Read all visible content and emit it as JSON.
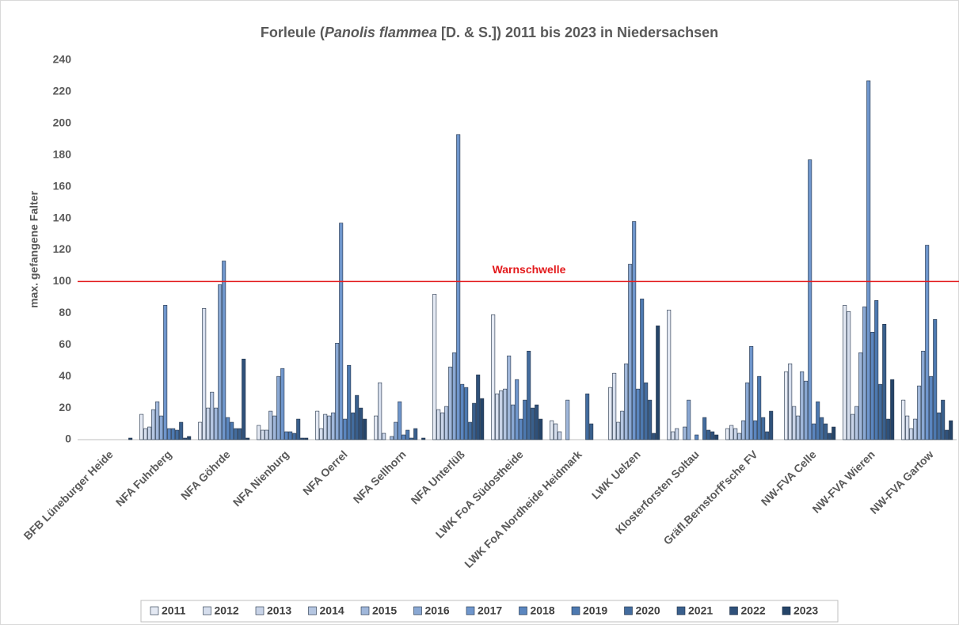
{
  "chart_data": {
    "type": "bar",
    "title_parts": [
      "Forleule (",
      "Panolis flammea",
      " [D. & S.]) 2011 bis 2023 in Niedersachsen"
    ],
    "y_label": "max. gefangene Falter",
    "threshold": {
      "value": 100,
      "label": "Warnschwelle",
      "color": "#e31a1c"
    },
    "categories": [
      "BFB Lüneburger Heide",
      "NFA Fuhrberg",
      "NFA Göhrde",
      "NFA Nienburg",
      "NFA Oerrel",
      "NFA Sellhorn",
      "NFA Unterlüß",
      "LWK FoA Südostheide",
      "LWK FoA Nordheide Heidmark",
      "LWK Uelzen",
      "Klosterforsten Soltau",
      "Gräfl.Bernstorff'sche FV",
      "NW-FVA Celle",
      "NW-FVA Wieren",
      "NW-FVA Gartow"
    ],
    "ylim": [
      0,
      240
    ],
    "yticks": [
      0,
      20,
      40,
      60,
      80,
      100,
      120,
      140,
      160,
      180,
      200,
      220,
      240
    ],
    "series": [
      {
        "name": "2011",
        "color": "#e4e9f3",
        "values": [
          null,
          16,
          11,
          9,
          18,
          15,
          92,
          79,
          12,
          33,
          82,
          7,
          43,
          85,
          25
        ]
      },
      {
        "name": "2012",
        "color": "#d6deed",
        "values": [
          null,
          7,
          83,
          6,
          7,
          36,
          19,
          29,
          10,
          42,
          5,
          9,
          48,
          81,
          15
        ]
      },
      {
        "name": "2013",
        "color": "#c8d3e7",
        "values": [
          null,
          8,
          20,
          6,
          16,
          4,
          17,
          31,
          5,
          11,
          7,
          7,
          21,
          16,
          7
        ]
      },
      {
        "name": "2014",
        "color": "#b5c6e1",
        "values": [
          null,
          19,
          30,
          18,
          15,
          null,
          21,
          32,
          null,
          18,
          null,
          4,
          15,
          21,
          13
        ]
      },
      {
        "name": "2015",
        "color": "#a0b7da",
        "values": [
          null,
          24,
          20,
          15,
          17,
          2,
          46,
          53,
          25,
          48,
          8,
          12,
          43,
          55,
          34
        ]
      },
      {
        "name": "2016",
        "color": "#8aa8d3",
        "values": [
          null,
          15,
          98,
          40,
          61,
          11,
          55,
          22,
          null,
          111,
          25,
          36,
          37,
          84,
          56
        ]
      },
      {
        "name": "2017",
        "color": "#6f96cc",
        "values": [
          null,
          85,
          113,
          45,
          137,
          24,
          193,
          38,
          null,
          138,
          null,
          59,
          177,
          227,
          123
        ]
      },
      {
        "name": "2018",
        "color": "#5b86bf",
        "values": [
          null,
          7,
          14,
          5,
          13,
          3,
          35,
          13,
          null,
          32,
          3,
          12,
          10,
          68,
          40
        ]
      },
      {
        "name": "2019",
        "color": "#4d79b0",
        "values": [
          null,
          7,
          11,
          5,
          47,
          6,
          33,
          25,
          null,
          89,
          null,
          40,
          24,
          88,
          76
        ]
      },
      {
        "name": "2020",
        "color": "#436c9e",
        "values": [
          null,
          6,
          7,
          4,
          17,
          1,
          11,
          56,
          29,
          36,
          14,
          14,
          14,
          35,
          17
        ]
      },
      {
        "name": "2021",
        "color": "#395f8c",
        "values": [
          null,
          11,
          7,
          13,
          28,
          7,
          23,
          20,
          10,
          25,
          6,
          5,
          10,
          73,
          25
        ]
      },
      {
        "name": "2022",
        "color": "#2f517a",
        "values": [
          null,
          1,
          51,
          1,
          20,
          null,
          41,
          22,
          null,
          4,
          5,
          18,
          4,
          13,
          6
        ]
      },
      {
        "name": "2023",
        "color": "#254468",
        "values": [
          1,
          2,
          1,
          1,
          13,
          1,
          26,
          13,
          null,
          72,
          3,
          null,
          8,
          38,
          12
        ]
      }
    ]
  }
}
